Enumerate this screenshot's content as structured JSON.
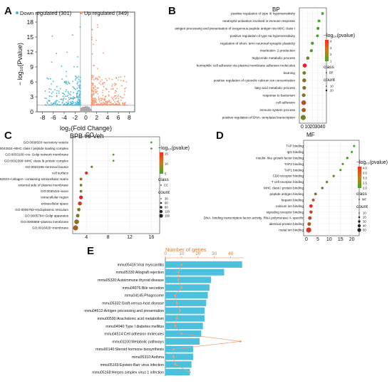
{
  "panels": {
    "A": "A",
    "B": "B",
    "C": "C",
    "D": "D",
    "E": "E"
  },
  "panelA": {
    "legend_down": "Down regulated (301)",
    "legend_up": "Up regulated (349)",
    "ylabel": "− log₁₀(Pvalue)",
    "xlabel": "log₂(Fold Change)",
    "subtitle": "BPB vs Veh",
    "colors": {
      "down": "#4bb8d6",
      "up": "#f29b74",
      "neutral": "#aaaaaa"
    }
  },
  "panelB": {
    "title": "BP",
    "legend_title": "−log₁₀(pvalue)",
    "class_title": "class",
    "class_item": "BP",
    "count_title": "count",
    "count_items": [
      "10",
      "20"
    ],
    "colorbar_ticks": [
      "4",
      "3",
      "2",
      "1"
    ]
  },
  "panelC": {
    "title": "CC",
    "legend_title": "−log₁₀(pvalue)",
    "class_title": "class",
    "class_item": "CC",
    "count_title": "count",
    "count_items": [
      "30",
      "60",
      "90",
      "120",
      "150"
    ],
    "colorbar_ticks": [
      "15",
      "10",
      "5"
    ]
  },
  "panelD": {
    "title": "MF",
    "legend_title": "−log₁₀(pvalue)",
    "class_title": "class",
    "class_item": "MF",
    "count_title": "count",
    "count_items": [
      "10",
      "20",
      "30",
      "40",
      "50"
    ],
    "colorbar_ticks": [
      "4.0",
      "3.5",
      "3.0",
      "2.5",
      "2.0"
    ]
  },
  "panelE": {
    "top_label": "Number of genes",
    "colors": {
      "bar": "#4cc0dc",
      "line": "#f0a070"
    }
  },
  "chart_data": [
    {
      "type": "scatter",
      "panel": "A",
      "title": "",
      "xlabel": "log₂(Fold Change)",
      "ylabel": "− log₁₀(Pvalue)",
      "xlim": [
        -9,
        9
      ],
      "ylim": [
        0,
        20
      ],
      "xticks": [
        "-8",
        "-6",
        "-4",
        "-2",
        "0",
        "2",
        "4",
        "6",
        "8"
      ],
      "yticks": [
        "0",
        "3",
        "6",
        "9",
        "12",
        "15",
        "18"
      ],
      "series": [
        {
          "name": "Down regulated (301)",
          "color": "#4bb8d6",
          "count": 301
        },
        {
          "name": "Up regulated (349)",
          "color": "#f29b74",
          "count": 349
        }
      ],
      "threshold_y": 1.3,
      "threshold_x": [
        -1,
        1
      ]
    },
    {
      "type": "scatter",
      "panel": "B",
      "title": "BP",
      "xlabel": "",
      "xticks": [
        "0",
        "10",
        "20",
        "30",
        "40"
      ],
      "xlim": [
        0,
        42
      ],
      "terms": [
        "positive regulation of type III hypersensitivity",
        "neutrophil activation involved in immune response",
        "antigen processing and presentation of exogenous peptide antigen via MHC class I",
        "positive regulation of type IIa hypersensitivity",
        "regulation of short- term neuronal synaptic plasticity",
        "interleukin- 2 production",
        "triglyceride metabolic process",
        "homophilic cell adhesion via plasma membrane adhesion molecules",
        "learning",
        "positive regulation of cytosolic calcium ion concentration",
        "fatty acid metabolic process",
        "response to bacterium",
        "cell adhesion",
        "immune system process",
        "positive regulation of DNA- templated transcription"
      ],
      "x": [
        40,
        33,
        31,
        30,
        20,
        18,
        11,
        5,
        4,
        4,
        4,
        3,
        3,
        3,
        2
      ],
      "count": [
        2,
        2,
        3,
        2,
        3,
        3,
        4,
        8,
        5,
        7,
        6,
        6,
        12,
        9,
        16
      ],
      "neglog10p": [
        1.5,
        1.6,
        1.7,
        1.5,
        1.8,
        1.8,
        2.0,
        4.2,
        2.3,
        2.6,
        2.5,
        2.4,
        3.2,
        2.8,
        2.2
      ]
    },
    {
      "type": "scatter",
      "panel": "C",
      "title": "CC",
      "xlabel": "",
      "xticks": [
        "4",
        "8",
        "12",
        "16"
      ],
      "xlim": [
        2,
        17
      ],
      "terms": [
        "GO:0099503~secretory vesicle",
        "GO:0042824~MHC class I peptide loading complex",
        "GO:0033106~cis- Golgi network membrane",
        "GO:0032398~MHC class Ib protein complex",
        "GO:0043195~terminal bouton",
        "cell surface",
        "GO:0062023~collagen- containing extracellular matrix",
        "external side of plasma membrane",
        "GO:0030424~axon",
        "extracellular region",
        "extracellular space",
        "GO:0005783~endoplasmic reticulum",
        "GO:0005794~Golgi apparatus",
        "GO:0005886~plasma membrane",
        "GO:0016020~membrane"
      ],
      "x": [
        16,
        16,
        9,
        9,
        5,
        4,
        3,
        3,
        3,
        3,
        2.8,
        2.6,
        2.4,
        2.2,
        2.0
      ],
      "count": [
        3,
        3,
        3,
        3,
        8,
        30,
        20,
        15,
        18,
        60,
        70,
        40,
        45,
        120,
        150
      ],
      "neglog10p": [
        3,
        3,
        4,
        4,
        5,
        13,
        8,
        7,
        6,
        15,
        12,
        7,
        7,
        8,
        9
      ]
    },
    {
      "type": "scatter",
      "panel": "D",
      "title": "MF",
      "xlabel": "",
      "xticks": [
        "0",
        "5",
        "10",
        "15",
        "20"
      ],
      "xlim": [
        0,
        22
      ],
      "terms": [
        "TAP binding",
        "IgG binding",
        "insulin- like growth factor binding",
        "TAP2 binding",
        "TAP1 binding",
        "CD8 receptor binding",
        "T cell receptor binding",
        "MHC class I protein binding",
        "peptide antigen binding",
        "heparin binding",
        "calcium ion binding",
        "signaling receptor binding",
        "DNA- binding transcription factor activity, RNA polymerase II- specific",
        "identical protein binding",
        "metal ion binding"
      ],
      "x": [
        21,
        20,
        18,
        16,
        15,
        12,
        9,
        7,
        4,
        3,
        2,
        2,
        1.5,
        1.2,
        1
      ],
      "count": [
        2,
        2,
        3,
        2,
        2,
        3,
        3,
        4,
        5,
        6,
        12,
        10,
        14,
        15,
        45
      ],
      "neglog10p": [
        2.1,
        2.2,
        2.4,
        2.3,
        2.3,
        2.5,
        2.6,
        2.8,
        3.0,
        3.2,
        4.0,
        3.3,
        3.4,
        3.1,
        3.6
      ]
    },
    {
      "type": "bar",
      "panel": "E",
      "orientation": "horizontal",
      "title": "Number of genes",
      "xticks": [
        "0",
        "10",
        "20",
        "30",
        "40"
      ],
      "xlim": [
        0,
        48
      ],
      "categories": [
        "mmu05416:Viral myocarditis",
        "mmu05330:Allograft rejection",
        "mmu05320:Autoimmune thyroid disease",
        "mmu04976:Bile secretion",
        "mmu04145:Phagosome",
        "mmu05332:Graft-versus-host disease",
        "mmu04612:Antigen processing and presentation",
        "mmu00590:Arachidonic acid metabolism",
        "mmu04940:Type I diabetes mellitus",
        "mmu04514:Cell adhesion molecules",
        "mmu01100:Metabolic pathways",
        "mmu00140:Steroid hormone biosynthesis",
        "mmu05310:Asthma",
        "mmu05169:Epstein-Barr virus infection",
        "mmu05168:Herpes simplex virus 1 infection"
      ],
      "values": [
        47,
        36,
        28,
        27,
        26,
        25,
        24,
        24,
        23,
        22,
        21,
        17,
        17,
        16,
        15
      ],
      "line_values": [
        10,
        8,
        8,
        10,
        6,
        7,
        9,
        7,
        6,
        10,
        46,
        5,
        5,
        6,
        15
      ]
    }
  ]
}
